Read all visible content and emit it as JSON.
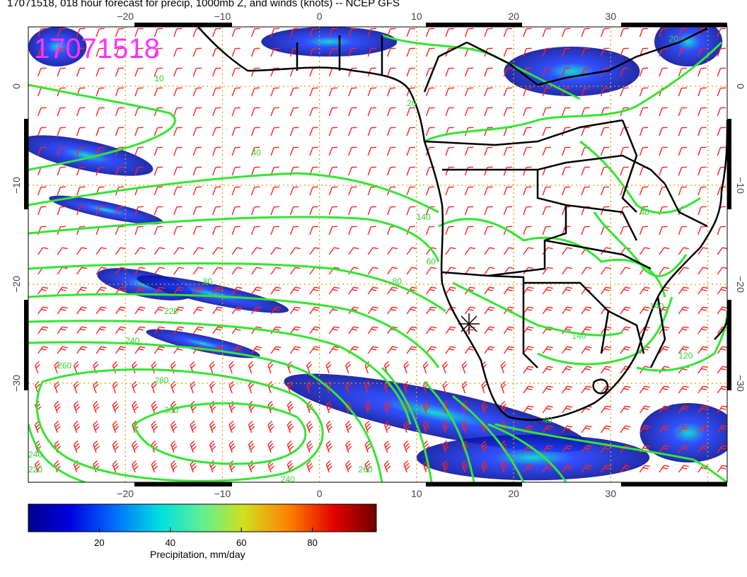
{
  "title": "17071518, 018 hour forecast for precip, 1000mb Z, and winds (knots) -- NCEP GFS",
  "date_stamp": "17071518",
  "axes": {
    "lon_ticks": [
      "−20",
      "−10",
      "0",
      "10",
      "20",
      "30"
    ],
    "lat_ticks": [
      "0",
      "−10",
      "−20",
      "−30"
    ],
    "lon_range": [
      -30,
      42
    ],
    "lat_range": [
      -40,
      6
    ]
  },
  "contour_labels": [
    {
      "text": "40",
      "lon": -7,
      "lat": -7
    },
    {
      "text": "80",
      "lon": -12,
      "lat": -20
    },
    {
      "text": "140",
      "lon": 10,
      "lat": -13.5
    },
    {
      "text": "60",
      "lon": 11,
      "lat": -18
    },
    {
      "text": "80",
      "lon": 7.5,
      "lat": -20
    },
    {
      "text": "220",
      "lon": -16,
      "lat": -23
    },
    {
      "text": "240",
      "lon": -20,
      "lat": -26
    },
    {
      "text": "260",
      "lon": -27,
      "lat": -28.5
    },
    {
      "text": "280",
      "lon": -17,
      "lat": -30
    },
    {
      "text": "300",
      "lon": -16,
      "lat": -33
    },
    {
      "text": "240",
      "lon": -30,
      "lat": -37.5
    },
    {
      "text": "220",
      "lon": -30,
      "lat": -39
    },
    {
      "text": "240",
      "lon": -4,
      "lat": -40
    },
    {
      "text": "260",
      "lon": 4,
      "lat": -39
    },
    {
      "text": "140",
      "lon": 26,
      "lat": -25.5
    },
    {
      "text": "140",
      "lon": 34,
      "lat": -22.5
    },
    {
      "text": "120",
      "lon": 37,
      "lat": -27.5
    },
    {
      "text": "40",
      "lon": 33,
      "lat": -13
    },
    {
      "text": "20",
      "lon": 9,
      "lat": -2
    },
    {
      "text": "10",
      "lon": -17,
      "lat": 0.5
    },
    {
      "text": "40",
      "lon": 23,
      "lat": -34
    },
    {
      "text": "20",
      "lon": 36,
      "lat": 4.5
    }
  ],
  "colorbar": {
    "label": "Precipitation, mm/day",
    "ticks": [
      "20",
      "40",
      "60",
      "80"
    ],
    "tick_values": [
      20,
      40,
      60,
      80
    ],
    "range": [
      0,
      98
    ]
  },
  "colors": {
    "contour": "#32e632",
    "wind": "#ff2020",
    "stamp": "#ff33ff",
    "grid": "#e0a000"
  },
  "precip_areas": [
    {
      "name": "west-africa-band",
      "lon": -27,
      "lat": 4,
      "rx": 3,
      "ry": 2
    },
    {
      "name": "gulf-band",
      "lon": 1,
      "lat": 4.5,
      "rx": 7,
      "ry": 1.5
    },
    {
      "name": "congo-band",
      "lon": 26,
      "lat": 1.5,
      "rx": 7,
      "ry": 2.5
    },
    {
      "name": "east-band",
      "lon": 38,
      "lat": 4.5,
      "rx": 3.5,
      "ry": 2.5
    },
    {
      "name": "atl-streak-1",
      "lon": -24,
      "lat": -7,
      "rx": 7,
      "ry": 1.5
    },
    {
      "name": "atl-streak-2",
      "lon": -22,
      "lat": -12.5,
      "rx": 6,
      "ry": 0.8
    },
    {
      "name": "atl-streak-3",
      "lon": -18,
      "lat": -20,
      "rx": 5,
      "ry": 1.3
    },
    {
      "name": "atl-streak-4",
      "lon": -11,
      "lat": -21,
      "rx": 8,
      "ry": 1.0
    },
    {
      "name": "atl-streak-5",
      "lon": -12,
      "lat": -26,
      "rx": 6,
      "ry": 0.8
    },
    {
      "name": "front-band",
      "lon": 12,
      "lat": -33,
      "rx": 16,
      "ry": 2.3
    },
    {
      "name": "cape-band",
      "lon": 22,
      "lat": -37.5,
      "rx": 12,
      "ry": 2.3
    },
    {
      "name": "se-band",
      "lon": 38,
      "lat": -35,
      "rx": 5,
      "ry": 3
    }
  ]
}
